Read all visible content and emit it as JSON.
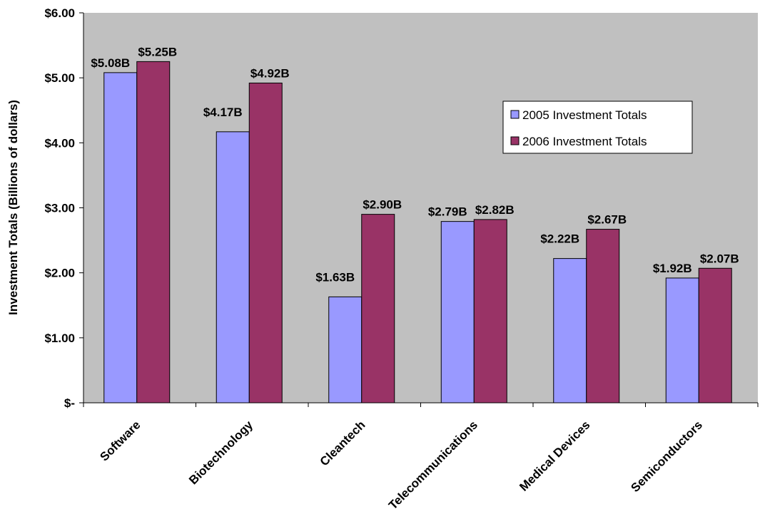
{
  "chart_data": {
    "type": "bar",
    "title": "",
    "xlabel": "",
    "ylabel": "Investment Totals (Billions of dollars)",
    "ylim": [
      0,
      6
    ],
    "ytick_values": [
      0,
      1,
      2,
      3,
      4,
      5,
      6
    ],
    "ytick_labels": [
      "$-",
      "$1.00",
      "$2.00",
      "$3.00",
      "$4.00",
      "$5.00",
      "$6.00"
    ],
    "categories": [
      "Software",
      "Biotechnology",
      "Cleantech",
      "Telecommunications",
      "Medical Devices",
      "Semiconductors"
    ],
    "series": [
      {
        "name": "2005 Investment Totals",
        "color": "#9999FF",
        "values": [
          5.08,
          4.17,
          1.63,
          2.79,
          2.22,
          1.92
        ],
        "labels": [
          "$5.08B",
          "$4.17B",
          "$1.63B",
          "$2.79B",
          "$2.22B",
          "$1.92B"
        ]
      },
      {
        "name": "2006 Investment Totals",
        "color": "#993366",
        "values": [
          5.25,
          4.92,
          2.9,
          2.82,
          2.67,
          2.07
        ],
        "labels": [
          "$5.25B",
          "$4.92B",
          "$2.90B",
          "$2.82B",
          "$2.67B",
          "$2.07B"
        ]
      }
    ],
    "plot_background": "#C0C0C0",
    "grid": false,
    "legend_position": "right"
  }
}
